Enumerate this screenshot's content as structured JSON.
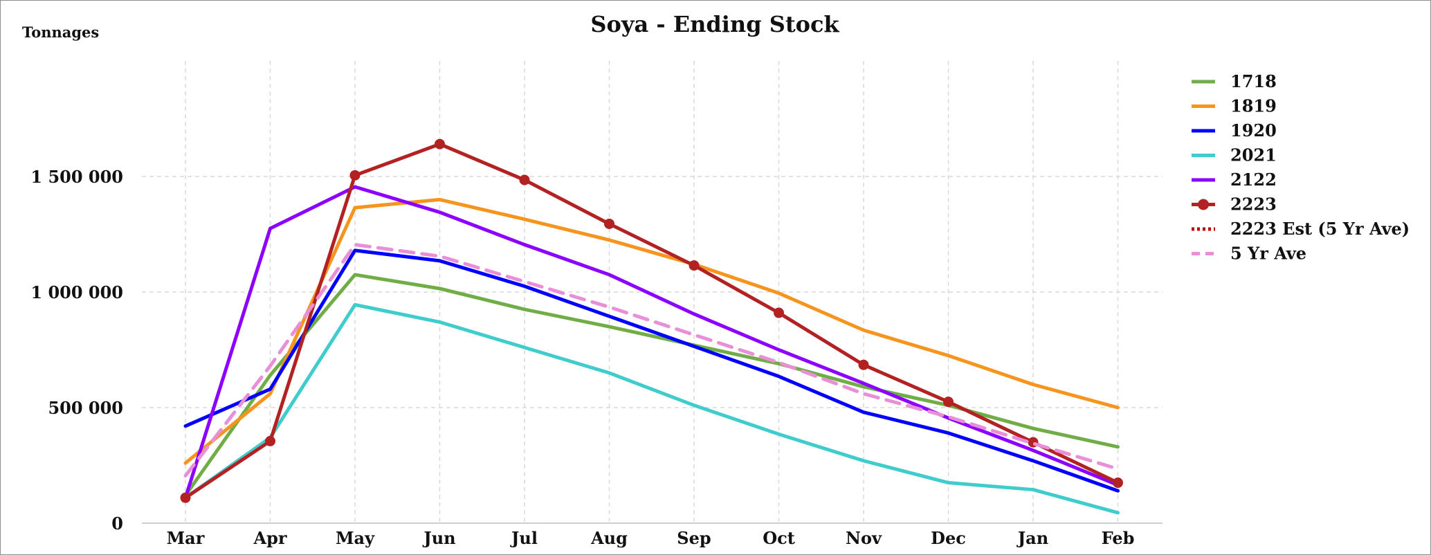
{
  "chart_data": {
    "type": "line",
    "title": "Soya - Ending Stock",
    "ylabel": "Tonnages",
    "xlabel": "",
    "categories": [
      "Mar",
      "Apr",
      "May",
      "Jun",
      "Jul",
      "Aug",
      "Sep",
      "Oct",
      "Nov",
      "Dec",
      "Jan",
      "Feb"
    ],
    "ylim": [
      0,
      2000000
    ],
    "yticks": [
      0,
      500000,
      1000000,
      1500000
    ],
    "ytick_labels": [
      "0",
      "500 000",
      "1 000 000",
      "1 500 000"
    ],
    "grid": true,
    "legend_position": "right",
    "series": [
      {
        "name": "1718",
        "color": "#70ad47",
        "style": "solid",
        "markers": false,
        "values": [
          120000,
          640000,
          1075000,
          1015000,
          925000,
          850000,
          770000,
          690000,
          590000,
          510000,
          410000,
          330000
        ]
      },
      {
        "name": "1819",
        "color": "#f7941d",
        "style": "solid",
        "markers": false,
        "values": [
          260000,
          560000,
          1365000,
          1400000,
          1315000,
          1225000,
          1120000,
          995000,
          835000,
          725000,
          600000,
          500000
        ]
      },
      {
        "name": "1920",
        "color": "#0000ff",
        "style": "solid",
        "markers": false,
        "values": [
          420000,
          580000,
          1180000,
          1135000,
          1025000,
          895000,
          765000,
          635000,
          480000,
          390000,
          270000,
          140000
        ]
      },
      {
        "name": "2021",
        "color": "#40cccc",
        "style": "solid",
        "markers": false,
        "values": [
          110000,
          370000,
          945000,
          870000,
          760000,
          650000,
          510000,
          385000,
          270000,
          175000,
          145000,
          45000
        ]
      },
      {
        "name": "2122",
        "color": "#8b00ff",
        "style": "solid",
        "markers": false,
        "values": [
          110000,
          1275000,
          1455000,
          1345000,
          1205000,
          1075000,
          905000,
          750000,
          605000,
          455000,
          315000,
          165000
        ]
      },
      {
        "name": "2223",
        "color": "#b22222",
        "style": "solid",
        "markers": true,
        "values": [
          110000,
          355000,
          1505000,
          1640000,
          1485000,
          1295000,
          1115000,
          910000,
          685000,
          525000,
          350000,
          175000
        ]
      },
      {
        "name": "2223 Est (5 Yr Ave)",
        "color": "#c00000",
        "style": "dotted",
        "markers": false,
        "values": [
          null,
          null,
          null,
          null,
          null,
          null,
          null,
          null,
          null,
          null,
          null,
          null
        ]
      },
      {
        "name": "5 Yr Ave",
        "color": "#e88fd8",
        "style": "dashed",
        "markers": false,
        "values": [
          205000,
          680000,
          1205000,
          1155000,
          1045000,
          935000,
          815000,
          695000,
          560000,
          460000,
          345000,
          235000
        ]
      }
    ]
  }
}
